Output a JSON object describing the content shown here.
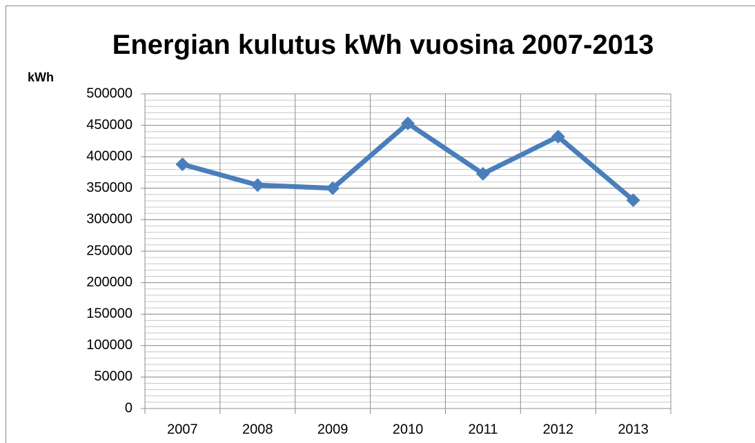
{
  "chart_data": {
    "type": "line",
    "title": "Energian kulutus kWh vuosina 2007-2013",
    "y_label": "kWh",
    "categories": [
      "2007",
      "2008",
      "2009",
      "2010",
      "2011",
      "2012",
      "2013"
    ],
    "series": [
      {
        "name": "Energian kulutus",
        "color": "#4a7ebb",
        "values": [
          388000,
          355000,
          350000,
          453000,
          373000,
          432000,
          331000
        ]
      }
    ],
    "ylim": [
      0,
      500000
    ],
    "yticks": [
      0,
      50000,
      100000,
      150000,
      200000,
      250000,
      300000,
      350000,
      400000,
      450000,
      500000
    ],
    "grid": true,
    "minor_grid_step": 10000,
    "legend": false
  }
}
